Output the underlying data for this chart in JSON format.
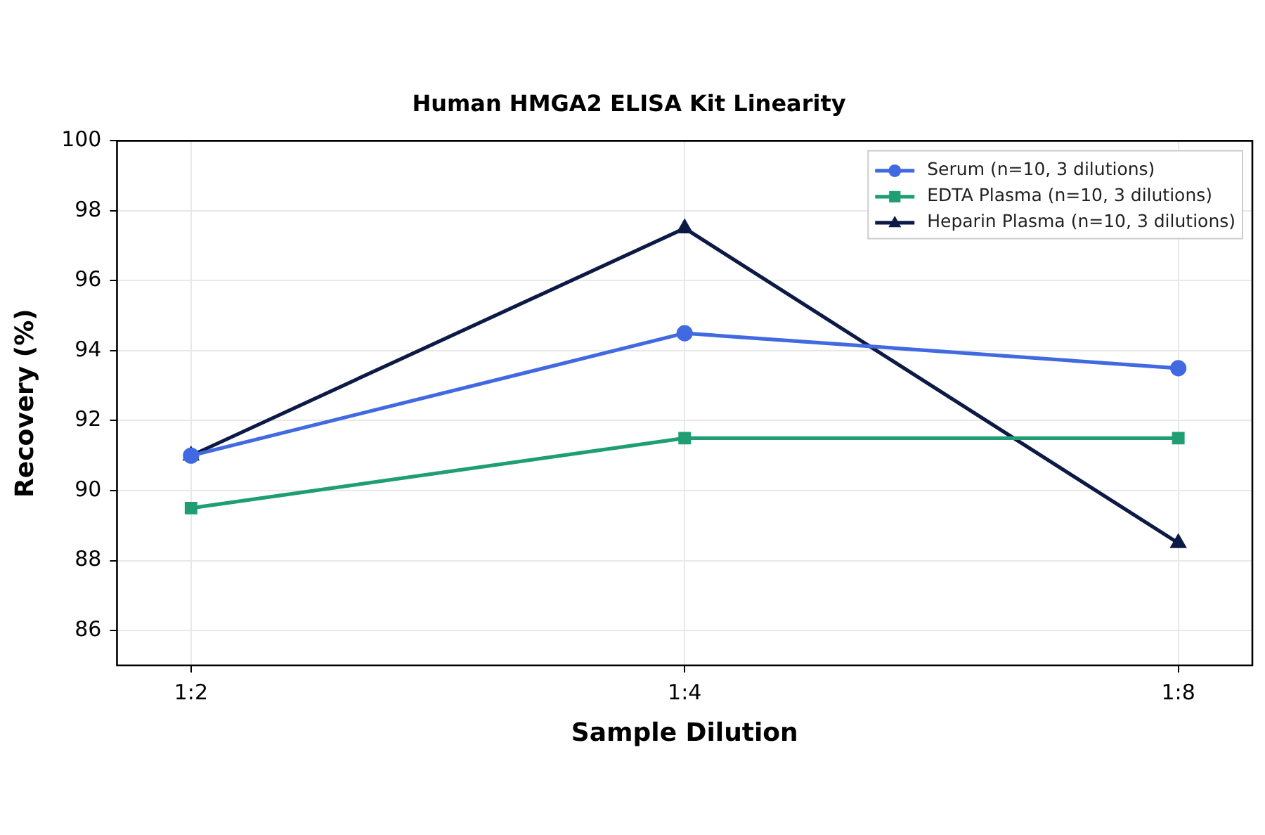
{
  "chart_data": {
    "type": "line",
    "title": "Human HMGA2 ELISA Kit Linearity",
    "xlabel": "Sample Dilution",
    "ylabel": "Recovery (%)",
    "categories": [
      "1:2",
      "1:4",
      "1:8"
    ],
    "series": [
      {
        "name": "Serum (n=10, 3 dilutions)",
        "color": "#4169e1",
        "marker": "circle",
        "values": [
          91,
          94.5,
          93.5
        ]
      },
      {
        "name": "EDTA Plasma (n=10, 3 dilutions)",
        "color": "#1f9e74",
        "marker": "square",
        "values": [
          89.5,
          91.5,
          91.5
        ]
      },
      {
        "name": "Heparin Plasma (n=10, 3 dilutions)",
        "color": "#0d1a45",
        "marker": "triangle",
        "values": [
          91,
          97.5,
          88.5
        ]
      }
    ],
    "ylim": [
      85,
      100
    ],
    "yticks": [
      86,
      88,
      90,
      92,
      94,
      96,
      98,
      100
    ],
    "grid": true,
    "legend": "top right"
  }
}
